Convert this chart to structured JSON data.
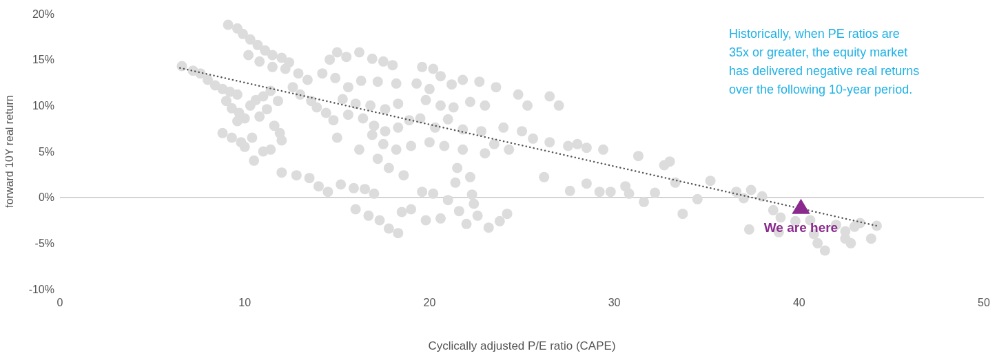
{
  "chart_data": {
    "type": "scatter",
    "xlabel": "Cyclically adjusted P/E ratio (CAPE)",
    "ylabel": "forward 10Y real return",
    "xlim": [
      0,
      50
    ],
    "xticks": [
      0,
      10,
      20,
      30,
      40,
      50
    ],
    "ylim": [
      -10,
      20
    ],
    "yticks": [
      {
        "value": -10,
        "label": "-10%"
      },
      {
        "value": -5,
        "label": "-5%"
      },
      {
        "value": 0,
        "label": "0%"
      },
      {
        "value": 5,
        "label": "5%"
      },
      {
        "value": 10,
        "label": "10%"
      },
      {
        "value": 15,
        "label": "15%"
      },
      {
        "value": 20,
        "label": "20%"
      }
    ],
    "ref_lines": [
      {
        "axis": "y",
        "value": 0,
        "color": "#c8c8c8"
      }
    ],
    "annotations": [
      "Historically, when PE ratios are\n35x or greater, the equity market\nhas delivered negative real returns\nover the following 10-year period."
    ],
    "series": [
      {
        "color": "#dcdcdd",
        "marker": "circle",
        "x": [
          6.6,
          7.2,
          7.6,
          8.0,
          8.4,
          8.8,
          9.2,
          9.6,
          9.0,
          9.3,
          9.7,
          10.0,
          9.6,
          10.3,
          10.6,
          11.0,
          11.4,
          11.8,
          11.2,
          10.8,
          11.6,
          11.9,
          12.0,
          8.8,
          9.3,
          9.8,
          10.0,
          10.4,
          10.5,
          11.0,
          11.4,
          9.1,
          9.6,
          9.9,
          10.3,
          10.7,
          11.1,
          11.5,
          12.0,
          12.4,
          10.2,
          10.8,
          11.5,
          12.2,
          12.9,
          13.4,
          12.6,
          13.0,
          13.6,
          13.9,
          14.4,
          14.6,
          15.0,
          15.5,
          16.2,
          16.9,
          17.5,
          18.0,
          14.2,
          14.9,
          15.6,
          16.3,
          17.2,
          18.2,
          15.3,
          16.0,
          16.8,
          17.6,
          18.3,
          14.8,
          15.6,
          16.4,
          17.0,
          17.6,
          18.3,
          18.9,
          16.9,
          17.5,
          18.2,
          19.0,
          17.2,
          17.8,
          18.6,
          16.2,
          15.0,
          19.6,
          20.2,
          20.6,
          19.3,
          20.0,
          21.2,
          21.8,
          22.7,
          23.6,
          19.8,
          20.6,
          21.3,
          22.2,
          23.0,
          19.5,
          20.3,
          21.0,
          21.8,
          22.8,
          24.0,
          20.0,
          20.8,
          21.8,
          23.0,
          24.3,
          21.5,
          22.2,
          23.5,
          24.8,
          25.3,
          26.5,
          27.0,
          25.0,
          25.6,
          26.5,
          27.5,
          28.5,
          29.4,
          28.0,
          12.0,
          12.8,
          13.5,
          14.0,
          14.5,
          15.2,
          15.9,
          16.5,
          17.0,
          16.0,
          16.7,
          17.3,
          17.8,
          18.3,
          18.5,
          19.0,
          19.6,
          20.2,
          19.8,
          20.6,
          21.0,
          21.6,
          22.0,
          22.6,
          23.2,
          23.8,
          24.2,
          22.4,
          21.4,
          22.3,
          26.2,
          27.6,
          28.5,
          29.2,
          29.8,
          30.6,
          30.8,
          31.6,
          32.2,
          32.7,
          33.0,
          33.3,
          33.7,
          34.5,
          35.2,
          36.6,
          37.0,
          37.4,
          38.0,
          37.3,
          38.6,
          39.0,
          38.9,
          39.8,
          40.6,
          41.0,
          40.8,
          41.4,
          42.0,
          42.5,
          42.8,
          42.5,
          43.0,
          43.3,
          43.9,
          44.2,
          31.3
        ],
        "values": [
          14.3,
          13.8,
          13.5,
          12.8,
          12.2,
          11.8,
          11.5,
          11.2,
          10.5,
          9.7,
          9.2,
          8.6,
          8.3,
          10.0,
          10.6,
          11.0,
          11.6,
          10.5,
          9.6,
          8.8,
          7.8,
          7.0,
          6.2,
          7.0,
          6.5,
          6.0,
          5.5,
          6.5,
          4.0,
          5.0,
          5.2,
          18.8,
          18.4,
          17.8,
          17.2,
          16.6,
          16.0,
          15.5,
          15.2,
          14.7,
          15.5,
          14.8,
          14.2,
          14.0,
          13.5,
          12.8,
          12.0,
          11.2,
          10.5,
          9.8,
          9.2,
          15.0,
          15.8,
          15.3,
          15.8,
          15.1,
          14.8,
          14.4,
          13.5,
          13.0,
          12.0,
          12.7,
          12.6,
          12.4,
          10.7,
          10.2,
          10.0,
          9.6,
          10.2,
          8.4,
          9.0,
          8.6,
          7.8,
          7.2,
          7.6,
          8.4,
          6.8,
          5.8,
          5.2,
          5.6,
          4.2,
          3.2,
          2.4,
          5.2,
          6.5,
          14.2,
          14.0,
          13.2,
          12.4,
          11.8,
          12.3,
          12.8,
          12.6,
          12.0,
          10.6,
          10.0,
          9.8,
          10.4,
          10.0,
          8.6,
          7.6,
          8.5,
          7.4,
          7.2,
          7.6,
          6.0,
          5.6,
          5.2,
          4.8,
          5.2,
          3.2,
          2.2,
          5.8,
          11.2,
          10.0,
          11.0,
          10.0,
          7.2,
          6.4,
          6.0,
          5.6,
          5.4,
          5.2,
          5.8,
          2.7,
          2.4,
          2.1,
          1.2,
          0.6,
          1.4,
          1.0,
          0.9,
          0.4,
          -1.3,
          -2.0,
          -2.5,
          -3.4,
          -3.9,
          -1.6,
          -1.3,
          0.6,
          0.4,
          -2.5,
          -2.3,
          -0.3,
          -1.5,
          -2.9,
          -2.0,
          -3.3,
          -2.6,
          -1.8,
          -0.7,
          1.6,
          0.3,
          2.2,
          0.7,
          1.5,
          0.6,
          0.6,
          1.2,
          0.4,
          -0.5,
          0.5,
          3.5,
          3.9,
          1.6,
          -1.8,
          -0.2,
          1.8,
          0.6,
          -0.1,
          0.8,
          0.1,
          -3.5,
          -1.4,
          -2.2,
          -3.8,
          -2.6,
          -2.5,
          -5.0,
          -4.0,
          -5.8,
          -3.0,
          -4.5,
          -5.0,
          -3.7,
          -3.2,
          -2.8,
          -4.5,
          -3.1,
          4.5
        ]
      },
      {
        "type": "line",
        "color": "#555555",
        "marker": "none",
        "line_style": "dotted",
        "x": [
          6.5,
          44.2
        ],
        "values": [
          14.1,
          -3.1
        ]
      },
      {
        "name": "We are here",
        "color": "#8b2a8e",
        "marker": "triangle",
        "x": [
          40.1
        ],
        "values": [
          -1.1
        ]
      }
    ]
  }
}
